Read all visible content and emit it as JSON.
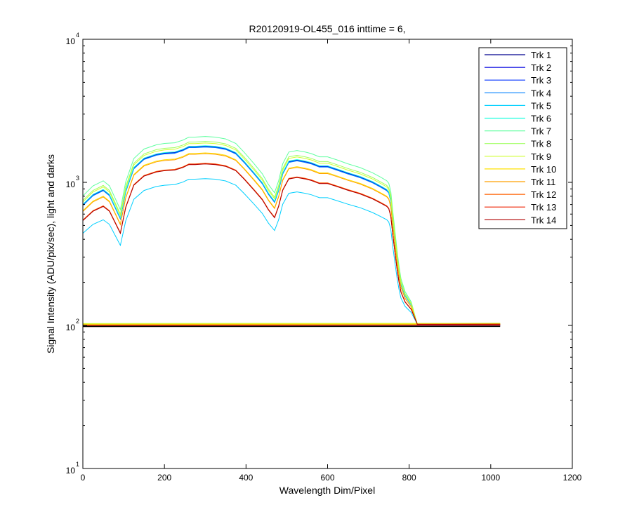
{
  "chart_data": {
    "type": "line",
    "title": "R20120919-OL455_016 inttime = 6,",
    "xlabel": "Wavelength Dim/Pixel",
    "ylabel": "Signal Intensity (ADU/pix/sec), light and darks",
    "xlim": [
      0,
      1200
    ],
    "ylim": [
      10,
      10000
    ],
    "yscale": "log",
    "grid": false,
    "legend_position": "top-right",
    "x_ticks": [
      "0",
      "200",
      "400",
      "600",
      "800",
      "1000",
      "1200"
    ],
    "y_ticks": [
      {
        "value": 10,
        "base": "10",
        "exponent": "1"
      },
      {
        "value": 100,
        "base": "10",
        "exponent": "2"
      },
      {
        "value": 1000,
        "base": "10",
        "exponent": "3"
      },
      {
        "value": 10000,
        "base": "10",
        "exponent": "4"
      }
    ],
    "light_profile": {
      "x": [
        0,
        25,
        50,
        65,
        80,
        92,
        105,
        125,
        150,
        180,
        200,
        225,
        245,
        260,
        275,
        300,
        325,
        350,
        375,
        395,
        420,
        440,
        455,
        470,
        480,
        490,
        505,
        525,
        545,
        560,
        580,
        600,
        625,
        650,
        680,
        710,
        730,
        745,
        750,
        755,
        760,
        765,
        770,
        775,
        780,
        790,
        805,
        820
      ],
      "relative": [
        0.35,
        0.42,
        0.46,
        0.42,
        0.33,
        0.27,
        0.45,
        0.68,
        0.8,
        0.86,
        0.88,
        0.89,
        0.93,
        0.98,
        0.98,
        0.99,
        0.98,
        0.95,
        0.88,
        0.76,
        0.62,
        0.52,
        0.43,
        0.37,
        0.46,
        0.62,
        0.76,
        0.78,
        0.76,
        0.74,
        0.7,
        0.7,
        0.66,
        0.62,
        0.58,
        0.53,
        0.49,
        0.46,
        0.44,
        0.38,
        0.26,
        0.18,
        0.12,
        0.08,
        0.055,
        0.035,
        0.022,
        0.0
      ]
    },
    "dark_level_start": 101,
    "dark_level_end": 102,
    "series": [
      {
        "name": "Trk 1",
        "color": "#00008f",
        "peak": 1700,
        "dark": 99
      },
      {
        "name": "Trk 2",
        "color": "#0000df",
        "peak": 1710,
        "dark": 99
      },
      {
        "name": "Trk 3",
        "color": "#0030ff",
        "peak": 1690,
        "dark": 100
      },
      {
        "name": "Trk 4",
        "color": "#0080ff",
        "peak": 1680,
        "dark": 100
      },
      {
        "name": "Trk 5",
        "color": "#00cfff",
        "peak": 970,
        "dark": 100
      },
      {
        "name": "Trk 6",
        "color": "#20ffdf",
        "peak": 1720,
        "dark": 101
      },
      {
        "name": "Trk 7",
        "color": "#60ffa0",
        "peak": 2010,
        "dark": 102
      },
      {
        "name": "Trk 8",
        "color": "#9fff60",
        "peak": 1850,
        "dark": 103
      },
      {
        "name": "Trk 9",
        "color": "#cfff30",
        "peak": 1800,
        "dark": 103
      },
      {
        "name": "Trk 10",
        "color": "#ffe000",
        "peak": 1520,
        "dark": 102
      },
      {
        "name": "Trk 11",
        "color": "#ffa000",
        "peak": 1500,
        "dark": 101
      },
      {
        "name": "Trk 12",
        "color": "#ff6000",
        "peak": 1270,
        "dark": 100
      },
      {
        "name": "Trk 13",
        "color": "#ef2000",
        "peak": 1260,
        "dark": 100
      },
      {
        "name": "Trk 14",
        "color": "#b00000",
        "peak": 1255,
        "dark": 98
      }
    ]
  }
}
